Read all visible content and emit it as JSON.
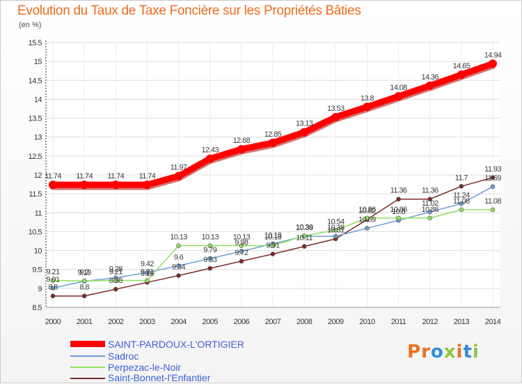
{
  "title": "Evolution du Taux de Taxe Foncière sur les Propriétés Bâties",
  "unit": "(en %)",
  "logo_text": "Proxiti",
  "logo_colors": [
    "#e8731e",
    "#e8731e",
    "#2f8fd8",
    "#8cc63f",
    "#e8731e",
    "#2f8fd8",
    "#8cc63f"
  ],
  "chart_data": {
    "type": "line",
    "title": "Evolution du Taux de Taxe Foncière sur les Propriétés Bâties",
    "ylabel": "(en %)",
    "xlabel": "",
    "ylim": [
      8.5,
      15.5
    ],
    "yticks": [
      "8.5",
      "9",
      "9.5",
      "10",
      "10.5",
      "11",
      "11.5",
      "12",
      "12.5",
      "13",
      "13.5",
      "14",
      "14.5",
      "15",
      "15.5"
    ],
    "categories": [
      "2000",
      "2001",
      "2002",
      "2003",
      "2004",
      "2005",
      "2006",
      "2007",
      "2008",
      "2009",
      "2010",
      "2011",
      "2012",
      "2013",
      "2014"
    ],
    "series": [
      {
        "name": "SAINT-PARDOUX-L'ORTIGIER",
        "color": "#ff0000",
        "width": 9,
        "values": [
          11.74,
          11.74,
          11.74,
          11.74,
          11.97,
          12.43,
          12.68,
          12.85,
          13.13,
          13.53,
          13.8,
          14.08,
          14.36,
          14.65,
          14.94
        ],
        "labels": [
          "11.74",
          "11.74",
          "11.74",
          "11.74",
          "11.97",
          "12.43",
          "12.68",
          "12.85",
          "13.13",
          "13.53",
          "13.8",
          "14.08",
          "14.36",
          "14.65",
          "14.94"
        ]
      },
      {
        "name": "Sadroc",
        "color": "#6b9fd4",
        "width": 1.5,
        "values": [
          9.01,
          9.19,
          9.28,
          9.42,
          9.6,
          9.79,
          9.98,
          10.18,
          10.38,
          10.38,
          10.59,
          10.8,
          11.02,
          11.24,
          11.69
        ],
        "labels": [
          "9.01",
          "9.19",
          "9.28",
          "9.42",
          "9.6",
          "9.79",
          "9.98",
          "10.18",
          "10.38",
          "10.38",
          "10.59",
          "10.8",
          "11.02",
          "11.24",
          "11.69"
        ]
      },
      {
        "name": "Perpezac-le-Noir",
        "color": "#90e060",
        "width": 1.5,
        "values": [
          9.21,
          9.2,
          9.21,
          9.21,
          10.13,
          10.13,
          10.13,
          10.13,
          10.39,
          10.54,
          10.86,
          10.86,
          10.86,
          11.08,
          11.08
        ],
        "labels": [
          "9.21",
          "9.2",
          "9.21",
          "9.21",
          "10.13",
          "10.13",
          "10.13",
          "10.13",
          "10.39",
          "10.54",
          "10.86",
          "10.86",
          "10.86",
          "11.08",
          "11.08"
        ]
      },
      {
        "name": "Saint-Bonnet-l'Enfantier",
        "color": "#7a2a28",
        "width": 1.5,
        "values": [
          8.8,
          8.8,
          8.98,
          9.16,
          9.34,
          9.53,
          9.72,
          9.91,
          10.11,
          10.31,
          10.82,
          11.36,
          11.36,
          11.7,
          11.93
        ],
        "labels": [
          "8.8",
          "8.8",
          "8.98",
          "9.16",
          "9.34",
          "9.53",
          "9.72",
          "9.91",
          "10.11",
          "10.31",
          "10.82",
          "11.36",
          "11.36",
          "11.7",
          "11.93"
        ]
      }
    ],
    "grid": true,
    "legend": "bottom-left"
  }
}
